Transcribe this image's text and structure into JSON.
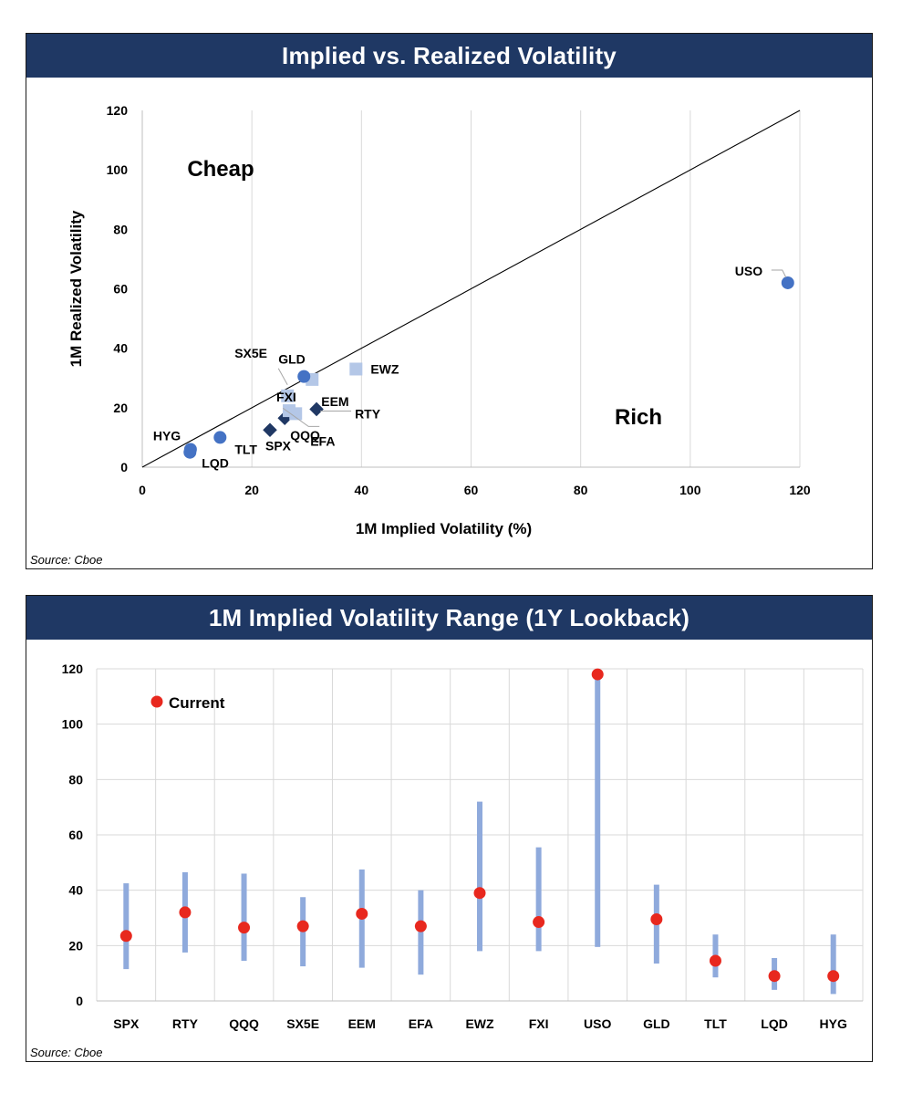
{
  "colors": {
    "banner": "#1f3864",
    "blue_circle": "#4472c4",
    "light_square": "#b4c7e7",
    "dark_diamond": "#203864",
    "range_bar": "#8faadc",
    "current_dot": "#e8281e"
  },
  "chart_data": [
    {
      "type": "scatter",
      "title": "Implied vs. Realized Volatility",
      "xlabel": "1M Implied Volatility (%)",
      "ylabel": "1M Realized Volatility",
      "xlim": [
        0,
        120
      ],
      "ylim": [
        0,
        120
      ],
      "xticks": [
        0,
        20,
        40,
        60,
        80,
        100,
        120
      ],
      "yticks": [
        0,
        20,
        40,
        60,
        80,
        100,
        120
      ],
      "grid": "vertical",
      "reference_line": "y = x",
      "annotations": {
        "cheap": "Cheap",
        "rich": "Rich"
      },
      "source": "Source: Cboe",
      "points": [
        {
          "label": "SPX",
          "x": 23.3,
          "y": 12.5,
          "marker": "diamond"
        },
        {
          "label": "RTY",
          "x": 31.8,
          "y": 19.5,
          "marker": "diamond"
        },
        {
          "label": "QQQ",
          "x": 26.0,
          "y": 16.5,
          "marker": "diamond"
        },
        {
          "label": "SX5E",
          "x": 26.5,
          "y": 24.0,
          "marker": "square"
        },
        {
          "label": "EEM",
          "x": 31.0,
          "y": 29.5,
          "marker": "square"
        },
        {
          "label": "EFA",
          "x": 28.0,
          "y": 18.0,
          "marker": "square"
        },
        {
          "label": "EWZ",
          "x": 39.0,
          "y": 33.0,
          "marker": "square"
        },
        {
          "label": "FXI",
          "x": 26.8,
          "y": 19.0,
          "marker": "square"
        },
        {
          "label": "USO",
          "x": 117.8,
          "y": 62.0,
          "marker": "circle"
        },
        {
          "label": "GLD",
          "x": 29.5,
          "y": 30.5,
          "marker": "circle"
        },
        {
          "label": "TLT",
          "x": 14.2,
          "y": 10.0,
          "marker": "circle"
        },
        {
          "label": "LQD",
          "x": 8.7,
          "y": 5.0,
          "marker": "circle"
        },
        {
          "label": "HYG",
          "x": 8.8,
          "y": 6.0,
          "marker": "circle"
        }
      ]
    },
    {
      "type": "range",
      "title": "1M Implied Volatility Range (1Y Lookback)",
      "ylim": [
        0,
        120
      ],
      "yticks": [
        0,
        20,
        40,
        60,
        80,
        100,
        120
      ],
      "legend": "Current",
      "source": "Source: Cboe",
      "categories": [
        "SPX",
        "RTY",
        "QQQ",
        "SX5E",
        "EEM",
        "EFA",
        "EWZ",
        "FXI",
        "USO",
        "GLD",
        "TLT",
        "LQD",
        "HYG"
      ],
      "low": [
        11.5,
        17.5,
        14.5,
        12.5,
        12.0,
        9.5,
        18.0,
        18.0,
        19.5,
        13.5,
        8.5,
        4.0,
        2.5
      ],
      "high": [
        42.5,
        46.5,
        46.0,
        37.5,
        47.5,
        40.0,
        72.0,
        55.5,
        118.0,
        42.0,
        24.0,
        15.5,
        24.0
      ],
      "current": [
        23.5,
        32.0,
        26.5,
        27.0,
        31.5,
        27.0,
        39.0,
        28.5,
        118.0,
        29.5,
        14.5,
        9.0,
        9.0
      ]
    }
  ]
}
